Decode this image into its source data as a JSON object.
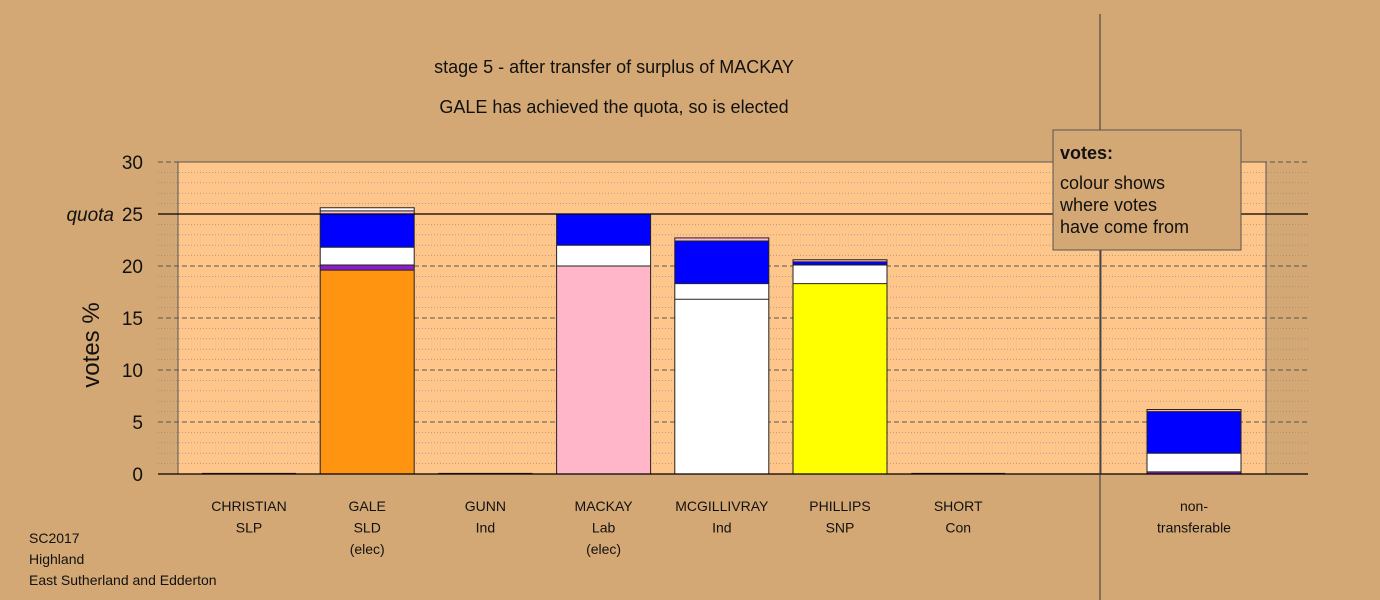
{
  "chart_data": {
    "type": "bar",
    "stacked": true,
    "title": "stage 5 - after transfer of surplus of MACKAY",
    "subtitle": "GALE has achieved the quota, so is elected",
    "ylabel": "votes %",
    "ylim": [
      0,
      30
    ],
    "yticks": [
      0,
      5,
      10,
      15,
      20,
      25,
      30
    ],
    "quota": 25,
    "quota_label": "quota",
    "grid": true,
    "legend": {
      "placement": "top-right",
      "title": "votes:",
      "lines": [
        "colour shows",
        "where votes",
        "have come from"
      ]
    },
    "categories": [
      {
        "name": "CHRISTIAN",
        "party": "SLP",
        "note": "",
        "segments": []
      },
      {
        "name": "GALE",
        "party": "SLD",
        "note": "(elec)",
        "segments": [
          {
            "value": 19.6,
            "color": "#ff9410"
          },
          {
            "value": 0.5,
            "color": "#8b1ec8"
          },
          {
            "value": 1.7,
            "color": "#ffffff"
          },
          {
            "value": 3.2,
            "color": "#0000ff"
          },
          {
            "value": 0.3,
            "color": "#ffb6c8"
          },
          {
            "value": 0.3,
            "color": "#ffffff"
          }
        ]
      },
      {
        "name": "GUNN",
        "party": "Ind",
        "note": "",
        "segments": []
      },
      {
        "name": "MACKAY",
        "party": "Lab",
        "note": "(elec)",
        "segments": [
          {
            "value": 20.0,
            "color": "#ffb6c8"
          },
          {
            "value": 2.0,
            "color": "#ffffff"
          },
          {
            "value": 3.0,
            "color": "#0000ff"
          }
        ]
      },
      {
        "name": "MCGILLIVRAY",
        "party": "Ind",
        "note": "",
        "segments": [
          {
            "value": 16.8,
            "color": "#ffffff"
          },
          {
            "value": 1.5,
            "color": "#ffffff"
          },
          {
            "value": 4.1,
            "color": "#0000ff"
          },
          {
            "value": 0.3,
            "color": "#ffb6c8"
          }
        ]
      },
      {
        "name": "PHILLIPS",
        "party": "SNP",
        "note": "",
        "segments": [
          {
            "value": 18.3,
            "color": "#ffff00"
          },
          {
            "value": 1.8,
            "color": "#ffffff"
          },
          {
            "value": 0.3,
            "color": "#0000ff"
          },
          {
            "value": 0.2,
            "color": "#ffb6c8"
          }
        ]
      },
      {
        "name": "SHORT",
        "party": "Con",
        "note": "",
        "segments": []
      }
    ],
    "nontransferable": {
      "line1": "non-",
      "line2": "transferable",
      "segments": [
        {
          "value": 0.2,
          "color": "#8b1ec8"
        },
        {
          "value": 1.8,
          "color": "#ffffff"
        },
        {
          "value": 4.0,
          "color": "#0000ff"
        },
        {
          "value": 0.2,
          "color": "#ffb6c8"
        }
      ]
    }
  },
  "footer": {
    "line1": "SC2017",
    "line2": "Highland",
    "line3": "East Sutherland and Edderton"
  }
}
